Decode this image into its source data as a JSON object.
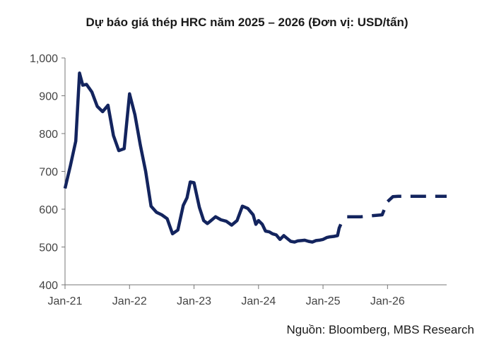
{
  "chart_data": {
    "type": "line",
    "title": "Dự báo giá thép HRC năm 2025 – 2026 (Đơn vị: USD/tấn)",
    "source": "Nguồn: Bloomberg, MBS Research",
    "xlabel": "",
    "ylabel": "",
    "ylim": [
      400,
      1000
    ],
    "yticks": [
      400,
      500,
      600,
      700,
      800,
      900,
      1000
    ],
    "ytick_labels": [
      "400",
      "500",
      "600",
      "700",
      "800",
      "900",
      "1,000"
    ],
    "xlim": [
      0,
      71
    ],
    "xticks": [
      0,
      12,
      24,
      36,
      48,
      60
    ],
    "xtick_labels": [
      "Jan-21",
      "Jan-22",
      "Jan-23",
      "Jan-24",
      "Jan-25",
      "Jan-26"
    ],
    "grid": false,
    "legend": "none",
    "color": "#13245e",
    "series": [
      {
        "style": "solid",
        "x": [
          0,
          1,
          2,
          2.7,
          3.3,
          4,
          5,
          6,
          7,
          8,
          9,
          10,
          11,
          12,
          13,
          14,
          15,
          16,
          17,
          18,
          19,
          20,
          21,
          22,
          22.7,
          23.3,
          24,
          25,
          25.8,
          26.5,
          27,
          28,
          29,
          30,
          31,
          32,
          33,
          34,
          35,
          35.5,
          36,
          36.7,
          37.3,
          38,
          38.6,
          39.3,
          40,
          40.7,
          41.3,
          42,
          42.7,
          43.3,
          44,
          44.6,
          45.3,
          46,
          46.7,
          47.3,
          48,
          48.7,
          49.3,
          50,
          50.7,
          51,
          51.3
        ],
        "y": [
          655,
          715,
          780,
          960,
          928,
          930,
          910,
          872,
          858,
          875,
          795,
          755,
          760,
          905,
          850,
          770,
          700,
          608,
          592,
          585,
          575,
          535,
          545,
          610,
          630,
          672,
          670,
          605,
          570,
          562,
          568,
          580,
          572,
          568,
          558,
          570,
          608,
          602,
          585,
          560,
          570,
          560,
          542,
          540,
          535,
          532,
          520,
          530,
          523,
          515,
          513,
          516,
          517,
          518,
          515,
          513,
          517,
          518,
          520,
          525,
          527,
          528,
          530,
          550,
          560
        ]
      },
      {
        "style": "dashed",
        "x": [
          52.5,
          55,
          59,
          60,
          61,
          62,
          63,
          64,
          65,
          66,
          67,
          68,
          69,
          70,
          71
        ],
        "y": [
          580,
          580,
          585,
          620,
          633,
          634,
          634,
          634,
          634,
          634,
          634,
          634,
          634,
          634,
          634
        ]
      }
    ]
  }
}
